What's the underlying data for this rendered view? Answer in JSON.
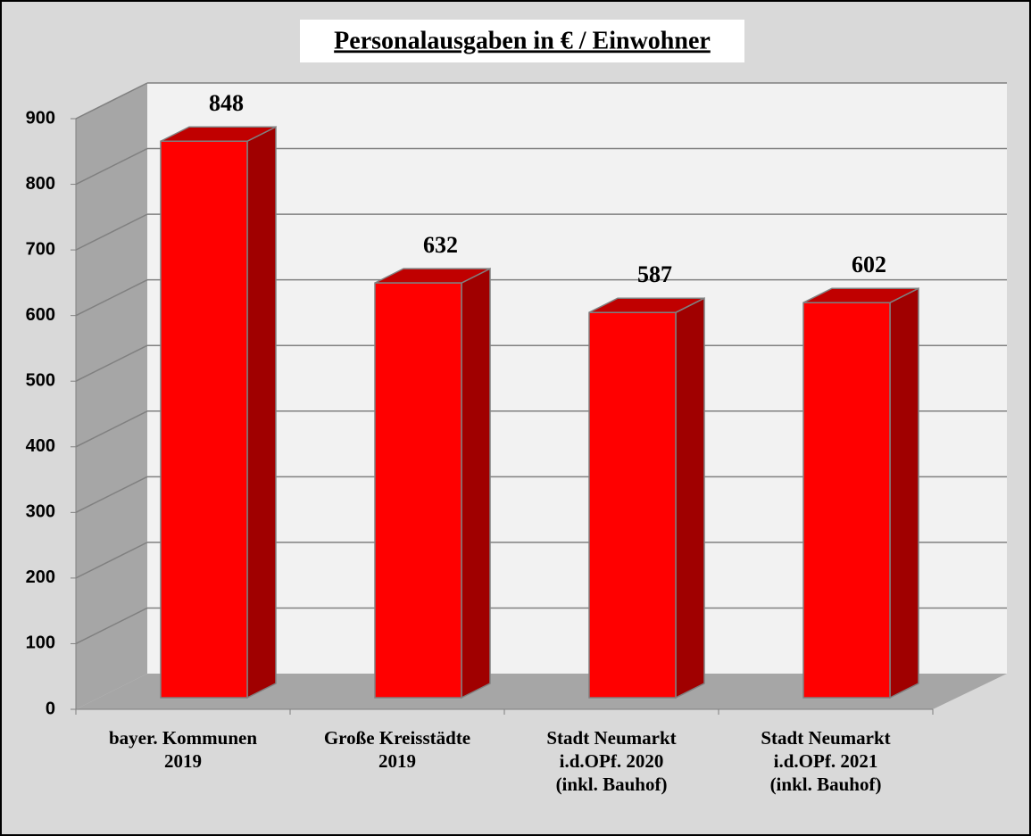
{
  "chart_data": {
    "type": "bar",
    "title": "Personalausgaben in € / Einwohner",
    "categories": [
      "bayer. Kommunen\n2019",
      "Große Kreisstädte\n2019",
      "Stadt Neumarkt\ni.d.OPf. 2020\n(inkl. Bauhof)",
      "Stadt Neumarkt\ni.d.OPf. 2021\n(inkl. Bauhof)"
    ],
    "values": [
      848,
      632,
      587,
      602
    ],
    "color": "#ff0000",
    "ylim": [
      0,
      900
    ],
    "yticks": [
      0,
      100,
      200,
      300,
      400,
      500,
      600,
      700,
      800,
      900
    ],
    "grid": true
  }
}
